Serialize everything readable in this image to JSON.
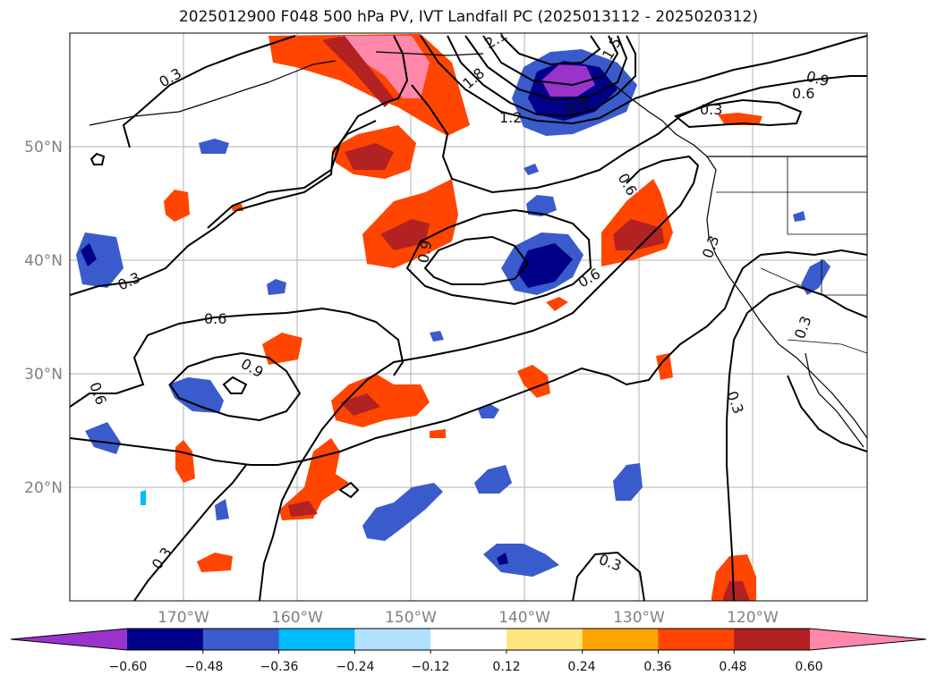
{
  "title": "2025012900 F048 500 hPa PV, IVT Landfall PC (2025013112 - 2025020312)",
  "map": {
    "projection": "PlateCarree",
    "lon_ticks": [
      "170°W",
      "160°W",
      "150°W",
      "140°W",
      "130°W",
      "120°W"
    ],
    "lat_ticks": [
      "50°N",
      "40°N",
      "30°N",
      "20°N"
    ],
    "grid": true
  },
  "contour_labels": [
    "0.3",
    "0.3",
    "0.3",
    "0.3",
    "0.3",
    "0.3",
    "0.3",
    "0.3",
    "0.6",
    "0.6",
    "0.6",
    "0.6",
    "0.6",
    "0.9",
    "0.9",
    "0.9",
    "0.9",
    "1.2",
    "1.5",
    "1.8",
    "2.1"
  ],
  "colorbar": {
    "ticks": [
      "−0.60",
      "−0.48",
      "−0.36",
      "−0.24",
      "−0.12",
      "0.12",
      "0.24",
      "0.36",
      "0.48",
      "0.60"
    ],
    "colors": [
      "#9933cc",
      "#000088",
      "#3a5bcc",
      "#00bbff",
      "#b0e2ff",
      "#ffffff",
      "#ffe680",
      "#ffa500",
      "#ff4500",
      "#b22222",
      "#ff88aa"
    ],
    "extend": "both"
  }
}
